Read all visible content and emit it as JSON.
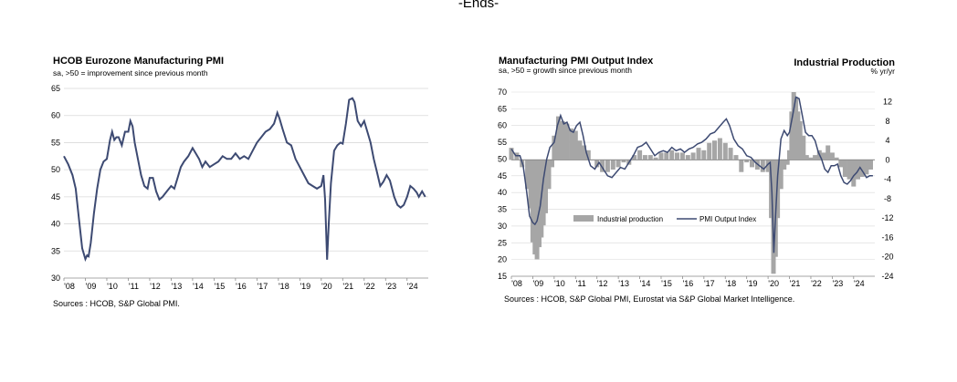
{
  "page": {
    "header": "-Ends-"
  },
  "colors": {
    "line": "#3d4a72",
    "bar": "#a6a6a6",
    "grid": "#d9d9d9"
  },
  "chart_data": [
    {
      "type": "line",
      "title": "HCOB Eurozone Manufacturing PMI",
      "subtitle": "sa, >50 = improvement  since previous month",
      "source": "Sources : HCOB, S&P Global PMI.",
      "ylim": [
        30,
        65
      ],
      "yticks": [
        "65",
        "60",
        "55",
        "50",
        "45",
        "40",
        "35",
        "30"
      ],
      "xticklabels": [
        "'08",
        "'09",
        "'10",
        "'11",
        "'12",
        "'13",
        "'14",
        "'15",
        "'16",
        "'17",
        "'18",
        "'19",
        "'20",
        "'21",
        "'22",
        "'23",
        "'24"
      ],
      "xrange": [
        2008.0,
        2024.99
      ],
      "series": [
        {
          "name": "HCOB Eurozone Manufacturing PMI",
          "x": [
            2008.0,
            2008.2,
            2008.4,
            2008.55,
            2008.7,
            2008.85,
            2009.0,
            2009.08,
            2009.15,
            2009.25,
            2009.4,
            2009.55,
            2009.7,
            2009.85,
            2010.0,
            2010.15,
            2010.25,
            2010.35,
            2010.45,
            2010.55,
            2010.7,
            2010.85,
            2011.0,
            2011.1,
            2011.2,
            2011.3,
            2011.45,
            2011.6,
            2011.75,
            2011.9,
            2012.0,
            2012.15,
            2012.3,
            2012.45,
            2012.6,
            2012.8,
            2013.0,
            2013.15,
            2013.3,
            2013.45,
            2013.6,
            2013.8,
            2014.0,
            2014.15,
            2014.3,
            2014.45,
            2014.6,
            2014.8,
            2015.0,
            2015.2,
            2015.4,
            2015.6,
            2015.8,
            2016.0,
            2016.2,
            2016.4,
            2016.6,
            2016.8,
            2017.0,
            2017.2,
            2017.4,
            2017.6,
            2017.8,
            2017.95,
            2018.05,
            2018.2,
            2018.4,
            2018.6,
            2018.8,
            2019.0,
            2019.2,
            2019.4,
            2019.6,
            2019.8,
            2020.0,
            2020.1,
            2020.18,
            2020.27,
            2020.35,
            2020.45,
            2020.6,
            2020.75,
            2020.9,
            2021.0,
            2021.15,
            2021.3,
            2021.45,
            2021.55,
            2021.7,
            2021.85,
            2022.0,
            2022.15,
            2022.3,
            2022.45,
            2022.6,
            2022.75,
            2022.9,
            2023.05,
            2023.2,
            2023.4,
            2023.55,
            2023.7,
            2023.85,
            2024.0,
            2024.15,
            2024.3,
            2024.45,
            2024.55,
            2024.7,
            2024.85
          ],
          "y": [
            52.5,
            51.0,
            49.0,
            46.5,
            41.0,
            35.5,
            33.5,
            34.2,
            34.0,
            36.5,
            42.0,
            46.5,
            50.0,
            51.5,
            52.0,
            55.5,
            57.0,
            55.5,
            56.0,
            56.0,
            54.5,
            57.0,
            57.0,
            59.0,
            58.0,
            55.0,
            52.0,
            49.0,
            47.0,
            46.5,
            48.5,
            48.5,
            46.0,
            44.5,
            45.0,
            46.0,
            47.0,
            46.5,
            48.5,
            50.5,
            51.5,
            52.5,
            54.0,
            53.0,
            52.0,
            50.5,
            51.5,
            50.5,
            51.0,
            51.5,
            52.5,
            52.0,
            52.0,
            53.0,
            52.0,
            52.5,
            52.0,
            53.5,
            55.0,
            56.0,
            57.0,
            57.5,
            58.5,
            60.5,
            59.5,
            57.5,
            55.0,
            54.5,
            52.0,
            50.5,
            49.0,
            47.5,
            47.0,
            46.5,
            47.0,
            49.0,
            44.5,
            33.4,
            40.0,
            47.5,
            53.5,
            54.5,
            55.0,
            54.8,
            58.5,
            62.9,
            63.2,
            62.5,
            59.0,
            58.0,
            59.0,
            57.0,
            55.0,
            52.0,
            49.5,
            47.0,
            47.8,
            49.0,
            48.0,
            45.0,
            43.5,
            43.0,
            43.5,
            45.0,
            47.0,
            46.5,
            45.8,
            45.0,
            46.0,
            45.0
          ]
        }
      ]
    },
    {
      "type": "bar+line",
      "title": "Manufacturing PMI Output Index",
      "subtitle": "sa, >50 = growth  since previous month",
      "title_right": "Industrial Production",
      "ylabel_right": "% yr/yr",
      "source": "Sources : HCOB, S&P Global PMI, Eurostat via S&P Global Market Intelligence.",
      "ylim_left": [
        15,
        70
      ],
      "yticks_left": [
        "70",
        "65",
        "60",
        "55",
        "50",
        "45",
        "40",
        "35",
        "30",
        "25",
        "20",
        "15"
      ],
      "ylim_right": [
        -24,
        14
      ],
      "yticks_right": [
        "12",
        "8",
        "4",
        "0",
        "-4",
        "-8",
        "-12",
        "-16",
        "-20",
        "-24"
      ],
      "xticklabels": [
        "'08",
        "'09",
        "'10",
        "'11",
        "'12",
        "'13",
        "'14",
        "'15",
        "'16",
        "'17",
        "'18",
        "'19",
        "'20",
        "'21",
        "'22",
        "'23",
        "'24"
      ],
      "xrange": [
        2008.0,
        2024.99
      ],
      "legend": [
        "Industrial production",
        "PMI Output Index"
      ],
      "series": [
        {
          "name": "Industrial production",
          "kind": "bar",
          "x": [
            2008.0,
            2008.25,
            2008.5,
            2008.75,
            2008.9,
            2009.0,
            2009.1,
            2009.2,
            2009.3,
            2009.4,
            2009.5,
            2009.6,
            2009.75,
            2009.9,
            2010.0,
            2010.2,
            2010.4,
            2010.6,
            2010.8,
            2011.0,
            2011.2,
            2011.4,
            2011.6,
            2011.8,
            2012.0,
            2012.25,
            2012.5,
            2012.75,
            2013.0,
            2013.25,
            2013.5,
            2013.75,
            2014.0,
            2014.25,
            2014.5,
            2014.75,
            2015.0,
            2015.25,
            2015.5,
            2015.75,
            2016.0,
            2016.25,
            2016.5,
            2016.75,
            2017.0,
            2017.25,
            2017.5,
            2017.75,
            2018.0,
            2018.25,
            2018.5,
            2018.75,
            2019.0,
            2019.25,
            2019.5,
            2019.75,
            2020.0,
            2020.15,
            2020.25,
            2020.35,
            2020.45,
            2020.6,
            2020.75,
            2020.9,
            2021.0,
            2021.1,
            2021.2,
            2021.3,
            2021.4,
            2021.5,
            2021.65,
            2021.8,
            2022.0,
            2022.2,
            2022.4,
            2022.6,
            2022.8,
            2023.0,
            2023.2,
            2023.4,
            2023.6,
            2023.8,
            2024.0,
            2024.2,
            2024.4,
            2024.6,
            2024.8
          ],
          "values": [
            2.5,
            1.5,
            -1.5,
            -6.0,
            -10.0,
            -17.0,
            -19.5,
            -20.5,
            -18.0,
            -16.0,
            -13.5,
            -11.0,
            -6.0,
            -1.5,
            5.0,
            9.0,
            8.0,
            7.5,
            6.5,
            6.0,
            4.0,
            3.0,
            2.0,
            0.0,
            -1.5,
            -2.5,
            -2.5,
            -2.0,
            -1.5,
            -0.5,
            -1.0,
            1.0,
            2.0,
            1.0,
            1.0,
            0.5,
            1.5,
            1.5,
            2.0,
            1.5,
            1.5,
            1.0,
            1.5,
            2.5,
            2.0,
            3.5,
            4.0,
            4.5,
            3.5,
            2.5,
            1.0,
            -2.5,
            -0.5,
            -1.5,
            -2.0,
            -2.5,
            -2.5,
            -12.0,
            -23.5,
            -20.0,
            -12.0,
            -6.0,
            -2.0,
            -1.0,
            2.0,
            10.0,
            14.0,
            13.0,
            10.0,
            8.0,
            5.0,
            1.0,
            0.5,
            1.0,
            2.0,
            1.5,
            3.0,
            1.5,
            0.5,
            -1.5,
            -3.5,
            -4.0,
            -5.5,
            -4.0,
            -3.5,
            -3.0,
            -2.0
          ]
        },
        {
          "name": "PMI Output Index",
          "kind": "line",
          "x": [
            2008.0,
            2008.2,
            2008.4,
            2008.55,
            2008.7,
            2008.85,
            2009.0,
            2009.1,
            2009.2,
            2009.35,
            2009.5,
            2009.65,
            2009.8,
            2010.0,
            2010.15,
            2010.3,
            2010.45,
            2010.6,
            2010.75,
            2010.9,
            2011.05,
            2011.2,
            2011.35,
            2011.5,
            2011.7,
            2011.9,
            2012.1,
            2012.3,
            2012.5,
            2012.7,
            2012.9,
            2013.1,
            2013.3,
            2013.5,
            2013.7,
            2013.9,
            2014.1,
            2014.3,
            2014.5,
            2014.7,
            2014.9,
            2015.1,
            2015.3,
            2015.5,
            2015.7,
            2015.9,
            2016.1,
            2016.3,
            2016.5,
            2016.7,
            2016.9,
            2017.1,
            2017.3,
            2017.5,
            2017.7,
            2017.9,
            2018.05,
            2018.2,
            2018.4,
            2018.6,
            2018.8,
            2019.0,
            2019.2,
            2019.4,
            2019.6,
            2019.8,
            2020.0,
            2020.1,
            2020.18,
            2020.27,
            2020.35,
            2020.45,
            2020.6,
            2020.75,
            2020.9,
            2021.0,
            2021.15,
            2021.3,
            2021.45,
            2021.6,
            2021.75,
            2021.9,
            2022.05,
            2022.2,
            2022.35,
            2022.5,
            2022.65,
            2022.8,
            2022.95,
            2023.1,
            2023.25,
            2023.4,
            2023.55,
            2023.7,
            2023.85,
            2024.0,
            2024.15,
            2024.3,
            2024.45,
            2024.6,
            2024.75,
            2024.9
          ],
          "y": [
            53.0,
            51.0,
            51.0,
            48.0,
            41.0,
            33.0,
            31.0,
            30.5,
            31.5,
            36.0,
            44.0,
            50.0,
            53.5,
            55.0,
            60.0,
            63.0,
            60.5,
            61.0,
            58.5,
            58.0,
            60.0,
            61.0,
            57.0,
            52.0,
            48.0,
            47.0,
            49.0,
            47.0,
            45.0,
            44.5,
            46.0,
            47.5,
            47.0,
            49.0,
            51.0,
            53.5,
            54.0,
            55.0,
            53.0,
            51.0,
            52.0,
            52.5,
            52.0,
            53.5,
            52.5,
            53.0,
            52.0,
            53.0,
            53.5,
            54.5,
            55.0,
            56.0,
            57.5,
            58.0,
            59.5,
            61.0,
            62.0,
            60.0,
            56.0,
            54.0,
            53.0,
            51.0,
            50.5,
            49.0,
            48.0,
            47.0,
            48.5,
            49.0,
            40.0,
            22.0,
            33.0,
            45.0,
            56.0,
            58.5,
            57.0,
            58.0,
            63.0,
            68.5,
            68.0,
            63.0,
            58.0,
            57.0,
            57.0,
            55.5,
            52.0,
            50.0,
            47.0,
            46.0,
            48.0,
            48.0,
            48.5,
            45.0,
            43.0,
            42.5,
            43.5,
            45.0,
            46.0,
            47.5,
            46.0,
            44.5,
            45.0,
            45.0
          ]
        }
      ]
    }
  ]
}
